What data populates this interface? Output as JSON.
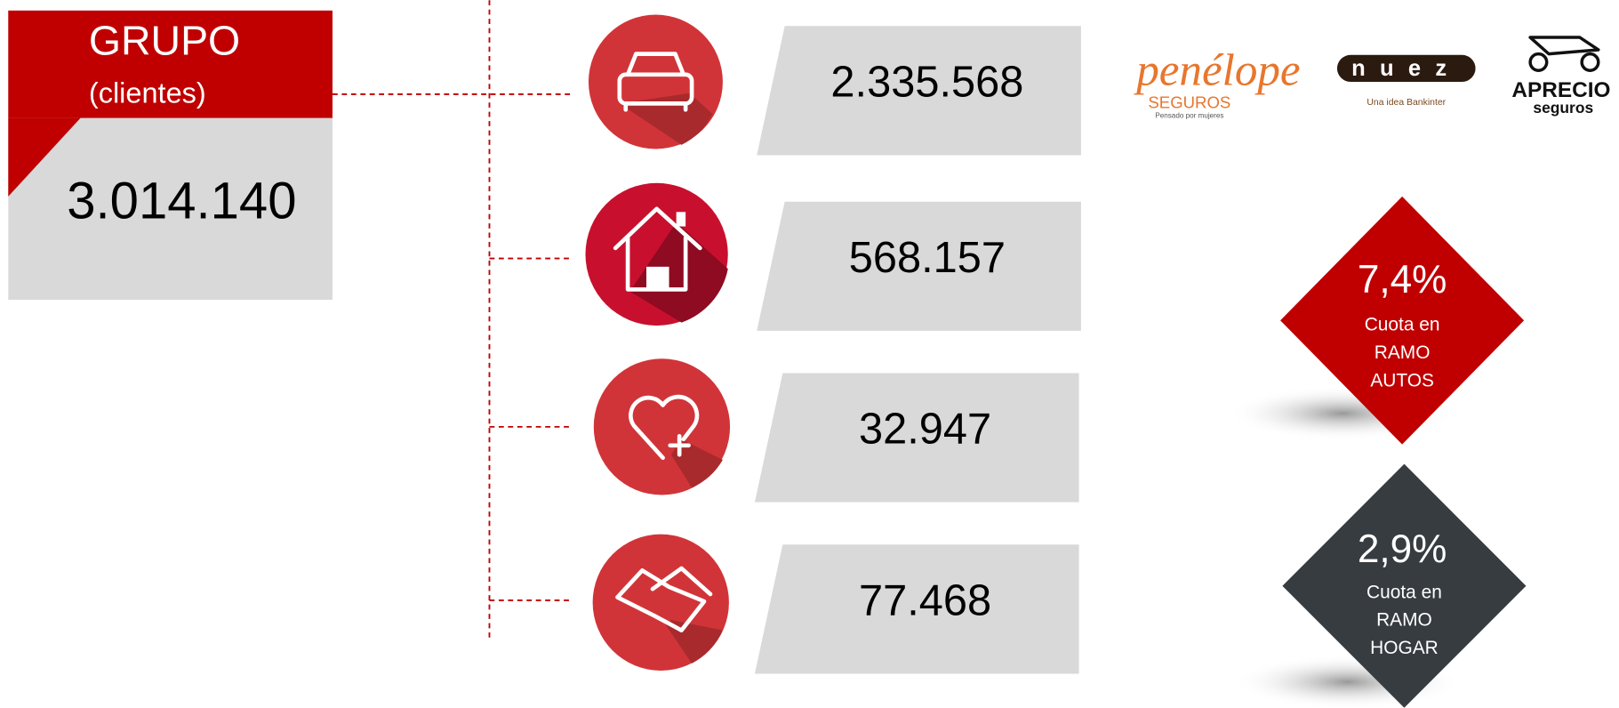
{
  "group": {
    "title": "GRUPO",
    "subtitle": "(clientes)",
    "value": "3.014.140"
  },
  "segments": [
    {
      "value": "2.335.568"
    },
    {
      "value": "568.157"
    },
    {
      "value": "32.947"
    },
    {
      "value": "77.468"
    }
  ],
  "logos": [
    {
      "name": "penélope",
      "line2": "SEGUROS",
      "tagline": "Pensado por mujeres"
    },
    {
      "name": "nuez",
      "tagline": "Una idea Bankinter"
    },
    {
      "name": "APRECIO",
      "line2": "seguros"
    }
  ],
  "shares": [
    {
      "value": "7,4%",
      "lines": [
        "Cuota en",
        "RAMO",
        "AUTOS"
      ]
    },
    {
      "value": "2,9%",
      "lines": [
        "Cuota en",
        "RAMO",
        "HOGAR"
      ]
    }
  ]
}
